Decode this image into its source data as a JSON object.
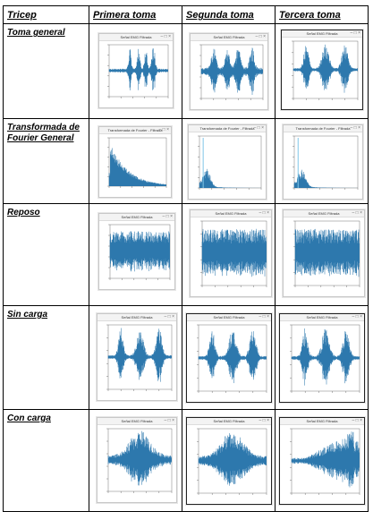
{
  "headers": [
    "Tricep",
    "Primera toma",
    "Segunda toma",
    "Tercera toma"
  ],
  "rows": [
    {
      "label": "Toma general",
      "plots": [
        {
          "title": "Señal EMG Filtrada",
          "kind": "bursts4"
        },
        {
          "title": "Señal EMG Filtrada",
          "kind": "bursts4b"
        },
        {
          "title": "Señal EMG Filtrada",
          "kind": "bursts3"
        }
      ]
    },
    {
      "label": "Transformada de Fourier General",
      "plots": [
        {
          "title": "Transformada de Fourier - Filtrada",
          "kind": "fft"
        },
        {
          "title": "Transformada de Fourier - Filtrada",
          "kind": "fftspike"
        },
        {
          "title": "Transformada de Fourier - Filtrada",
          "kind": "fftspike2"
        }
      ]
    },
    {
      "label": "Reposo",
      "plots": [
        {
          "title": "Señal EMG Filtrada",
          "kind": "noise"
        },
        {
          "title": "Señal EMG Filtrada",
          "kind": "noise"
        },
        {
          "title": "Señal EMG Filtrada",
          "kind": "noise"
        }
      ]
    },
    {
      "label": "Sin carga",
      "plots": [
        {
          "title": "Señal EMG Filtrada",
          "kind": "bursts3"
        },
        {
          "title": "Señal EMG Filtrada",
          "kind": "bursts3"
        },
        {
          "title": "Señal EMG Filtrada",
          "kind": "bursts3"
        }
      ]
    },
    {
      "label": "Con carga",
      "plots": [
        {
          "title": "Señal EMG Filtrada",
          "kind": "swell"
        },
        {
          "title": "Señal EMG Filtrada",
          "kind": "swell"
        },
        {
          "title": "Señal EMG Filtrada",
          "kind": "swellrise"
        }
      ]
    }
  ],
  "colors": {
    "signal": "#1f6fa8",
    "spike": "#7fc6e8"
  }
}
